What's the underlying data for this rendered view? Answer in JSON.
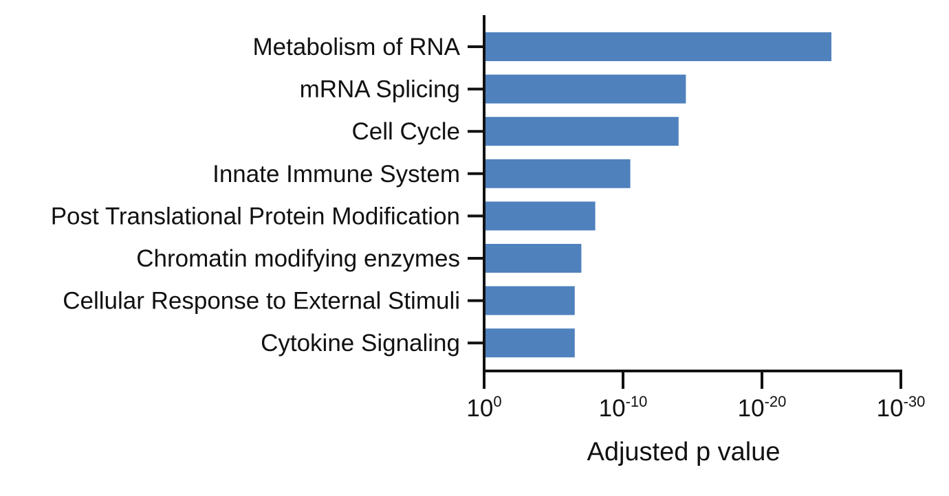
{
  "chart_data": {
    "type": "bar",
    "orientation": "horizontal",
    "x_scale": "log",
    "categories": [
      "Metabolism of RNA",
      "mRNA Splicing",
      "Cell Cycle",
      "Innate Immune System",
      "Post Translational Protein Modification",
      "Chromatin modifying enzymes",
      "Cellular Response to External Stimuli",
      "Cytokine Signaling"
    ],
    "values": [
      1e-25,
      3e-15,
      1e-14,
      3e-11,
      1e-08,
      1e-07,
      3e-07,
      3e-07
    ],
    "xlabel": "Adjusted p value",
    "xlim": [
      1,
      1e-30
    ],
    "x_ticks": [
      {
        "base": "10",
        "exp": "0"
      },
      {
        "base": "10",
        "exp": "-10"
      },
      {
        "base": "10",
        "exp": "-20"
      },
      {
        "base": "10",
        "exp": "-30"
      }
    ],
    "grid": false,
    "bar_color": "#4f81bd"
  }
}
